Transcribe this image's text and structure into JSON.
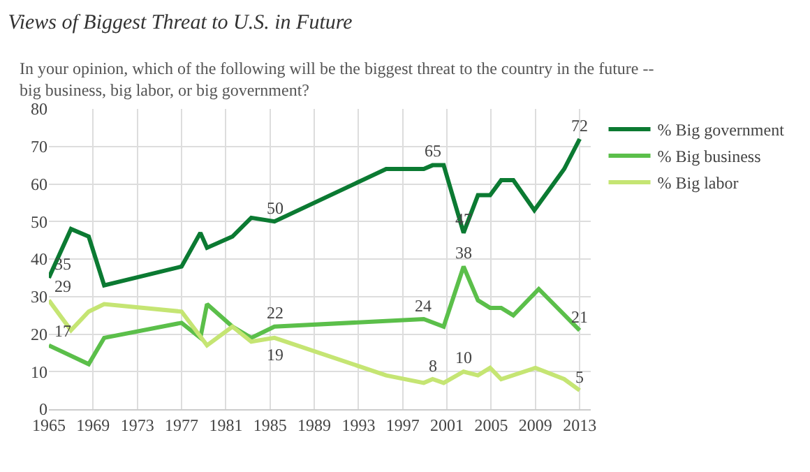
{
  "chart_data": {
    "type": "line",
    "title": "Views of Biggest Threat to U.S. in Future",
    "subtitle": "In your opinion, which of the following will be the biggest threat to the country in the future -- big business, big labor, or big government?",
    "series": [
      {
        "name": "% Big government",
        "color": "#0b7a32",
        "x": [
          1965,
          1967,
          1968.6,
          1970,
          1977,
          1978.7,
          1979.3,
          1981.6,
          1983.3,
          1985.4,
          1995.5,
          1998.9,
          1999.7,
          2000.7,
          2002.5,
          2003.8,
          2004.9,
          2005.9,
          2007,
          2008.9,
          2011.6,
          2013
        ],
        "values": [
          35,
          48,
          46,
          33,
          38,
          47,
          43,
          46,
          51,
          50,
          64,
          64,
          65,
          65,
          47,
          57,
          57,
          61,
          61,
          53,
          64,
          72
        ]
      },
      {
        "name": "% Big business",
        "color": "#5bbf4a",
        "x": [
          1965,
          1968.6,
          1970,
          1977,
          1978.7,
          1979.3,
          1981.6,
          1983.3,
          1985.4,
          1998.9,
          2000.7,
          2002.5,
          2003.8,
          2004.9,
          2005.9,
          2007,
          2009.3,
          2013
        ],
        "values": [
          17,
          12,
          19,
          23,
          19,
          28,
          22,
          19,
          22,
          24,
          22,
          38,
          29,
          27,
          27,
          25,
          32,
          21
        ]
      },
      {
        "name": "% Big labor",
        "color": "#c5e573",
        "x": [
          1965,
          1967,
          1968.6,
          1970,
          1977,
          1979.3,
          1981.6,
          1983.3,
          1985.4,
          1995.5,
          1998.9,
          1999.7,
          2000.7,
          2002.5,
          2003.8,
          2004.9,
          2005.9,
          2009,
          2011.6,
          2013
        ],
        "values": [
          29,
          21,
          26,
          28,
          26,
          17,
          22,
          18,
          19,
          9,
          7,
          8,
          7,
          10,
          9,
          11,
          8,
          11,
          8,
          5
        ]
      }
    ],
    "annotations": [
      {
        "text": "35",
        "x": 1965,
        "y": 35
      },
      {
        "text": "29",
        "x": 1965,
        "y": 29
      },
      {
        "text": "17",
        "x": 1965,
        "y": 17
      },
      {
        "text": "50",
        "x": 1985.4,
        "y": 50
      },
      {
        "text": "22",
        "x": 1985.4,
        "y": 22
      },
      {
        "text": "19",
        "x": 1985.4,
        "y": 19
      },
      {
        "text": "65",
        "x": 1999.7,
        "y": 65
      },
      {
        "text": "24",
        "x": 1998.9,
        "y": 24
      },
      {
        "text": "8",
        "x": 1999.7,
        "y": 8
      },
      {
        "text": "47",
        "x": 2002.5,
        "y": 47
      },
      {
        "text": "38",
        "x": 2002.5,
        "y": 38
      },
      {
        "text": "10",
        "x": 2002.5,
        "y": 10
      },
      {
        "text": "72",
        "x": 2013,
        "y": 72
      },
      {
        "text": "21",
        "x": 2013,
        "y": 21
      },
      {
        "text": "5",
        "x": 2013,
        "y": 5
      }
    ],
    "xlim": [
      1965,
      2014
    ],
    "xticks": [
      1965,
      1969,
      1973,
      1977,
      1981,
      1985,
      1989,
      1993,
      1997,
      2001,
      2005,
      2009,
      2013
    ],
    "ylim": [
      0,
      80
    ],
    "yticks": [
      0,
      10,
      20,
      30,
      40,
      50,
      60,
      70,
      80
    ],
    "grid": true,
    "legend": "right",
    "line_style": "solid",
    "marker": "none"
  }
}
